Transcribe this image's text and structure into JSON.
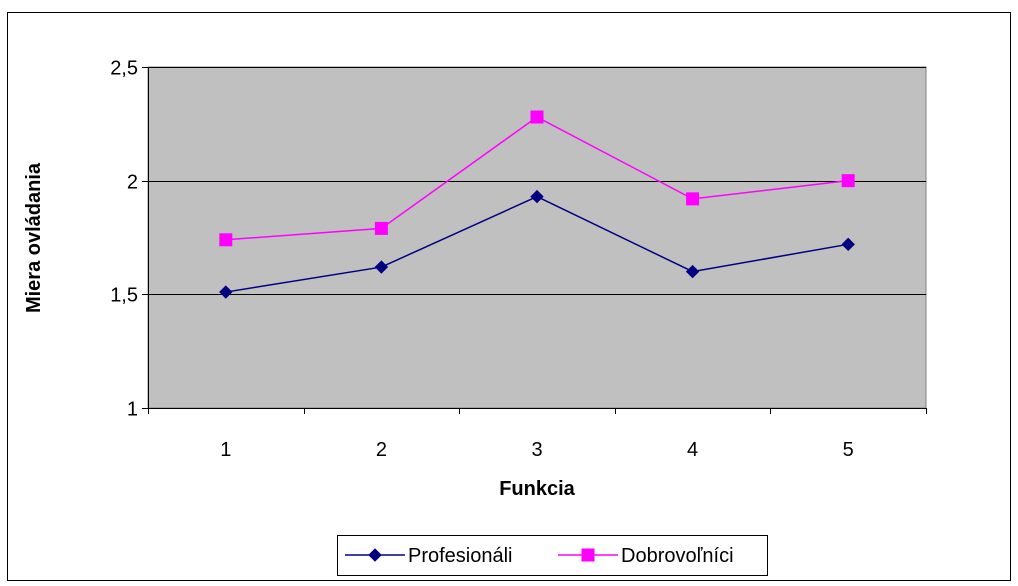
{
  "chart_data": {
    "type": "line",
    "title": "",
    "xlabel": "Funkcia",
    "ylabel": "Miera ovládania",
    "categories": [
      "1",
      "2",
      "3",
      "4",
      "5"
    ],
    "ylim": [
      1,
      2.5
    ],
    "yticks": [
      1,
      1.5,
      2,
      2.5
    ],
    "ytick_labels": [
      "1",
      "1,5",
      "2",
      "2,5"
    ],
    "grid": "horizontal",
    "plot_background": "#c0c0c0",
    "legend_position": "bottom",
    "series": [
      {
        "name": "Profesionáli",
        "color": "#000080",
        "marker": "diamond",
        "values": [
          1.51,
          1.62,
          1.93,
          1.6,
          1.72
        ]
      },
      {
        "name": "Dobrovoľníci",
        "color": "#ff00ff",
        "marker": "square",
        "values": [
          1.74,
          1.79,
          2.28,
          1.92,
          2.0
        ]
      }
    ]
  }
}
